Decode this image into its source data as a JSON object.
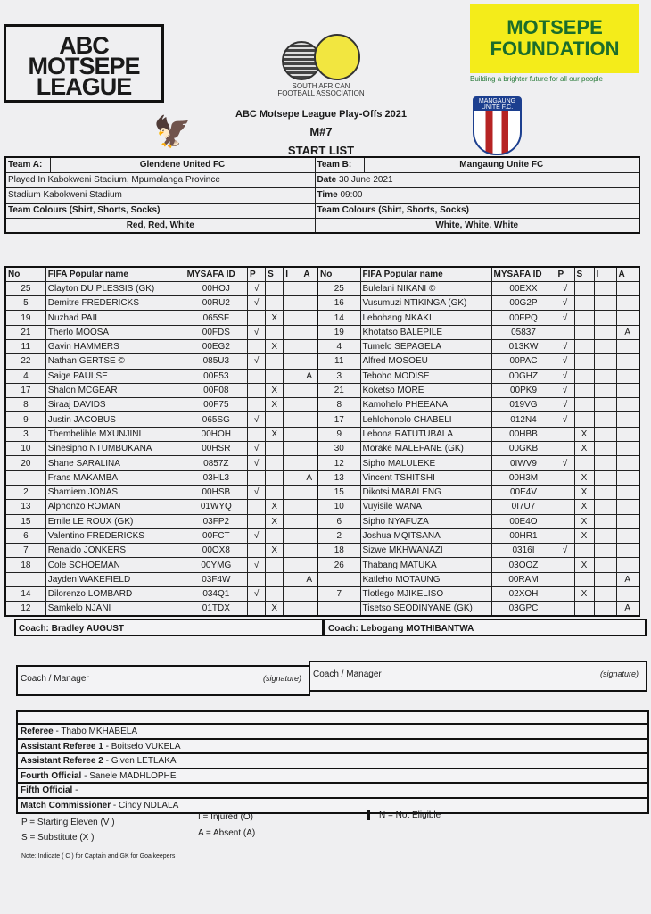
{
  "logos": {
    "abc": "ABC MOTSEPE LEAGUE",
    "safa": "SOUTH AFRICAN FOOTBALL ASSOCIATION",
    "foundation": "MOTSEPE FOUNDATION",
    "foundation_tagline": "Building a brighter future for all our people",
    "crest": "MANGAUNG UNITE F.C."
  },
  "header": {
    "competition": "ABC Motsepe League Play-Offs 2021",
    "match": "M#7",
    "title": "START LIST"
  },
  "info": {
    "team_a_label": "Team A:",
    "team_a": "Glendene United FC",
    "team_b_label": "Team B:",
    "team_b": "Mangaung Unite FC",
    "played_in": "Played In Kabokweni Stadium, Mpumalanga Province",
    "date_label": "Date",
    "date": "30 June 2021",
    "stadium": "Stadium Kabokweni Stadium",
    "time_label": "Time",
    "time": "09:00",
    "colours_label": "Team Colours (Shirt, Shorts, Socks)",
    "team_a_colours": "Red, Red, White",
    "team_b_colours": "White, White, White"
  },
  "columns": [
    "No",
    "FIFA Popular name",
    "MYSAFA ID",
    "P",
    "S",
    "I",
    "A"
  ],
  "team_a_players": [
    [
      "25",
      "Clayton DU PLESSIS (GK)",
      "00HOJ",
      "√",
      "",
      "",
      ""
    ],
    [
      "5",
      "Demitre FREDERICKS",
      "00RU2",
      "√",
      "",
      "",
      ""
    ],
    [
      "19",
      "Nuzhad PAIL",
      "065SF",
      "",
      "X",
      "",
      ""
    ],
    [
      "21",
      "Therlo MOOSA",
      "00FDS",
      "√",
      "",
      "",
      ""
    ],
    [
      "11",
      "Gavin HAMMERS",
      "00EG2",
      "",
      "X",
      "",
      ""
    ],
    [
      "22",
      "Nathan GERTSE ©",
      "085U3",
      "√",
      "",
      "",
      ""
    ],
    [
      "4",
      "Saige PAULSE",
      "00F53",
      "",
      "",
      "",
      "A"
    ],
    [
      "17",
      "Shalon MCGEAR",
      "00F08",
      "",
      "X",
      "",
      ""
    ],
    [
      "8",
      "Siraaj DAVIDS",
      "00F75",
      "",
      "X",
      "",
      ""
    ],
    [
      "9",
      "Justin JACOBUS",
      "065SG",
      "√",
      "",
      "",
      ""
    ],
    [
      "3",
      "Thembelihle MXUNJINI",
      "00HOH",
      "",
      "X",
      "",
      ""
    ],
    [
      "10",
      "Sinesipho NTUMBUKANA",
      "00HSR",
      "√",
      "",
      "",
      ""
    ],
    [
      "20",
      "Shane SARALINA",
      "0857Z",
      "√",
      "",
      "",
      ""
    ],
    [
      "",
      "Frans MAKAMBA",
      "03HL3",
      "",
      "",
      "",
      "A"
    ],
    [
      "2",
      "Shamiem JONAS",
      "00HSB",
      "√",
      "",
      "",
      ""
    ],
    [
      "13",
      "Alphonzo ROMAN",
      "01WYQ",
      "",
      "X",
      "",
      ""
    ],
    [
      "15",
      "Emile LE ROUX (GK)",
      "03FP2",
      "",
      "X",
      "",
      ""
    ],
    [
      "6",
      "Valentino FREDERICKS",
      "00FCT",
      "√",
      "",
      "",
      ""
    ],
    [
      "7",
      "Renaldo JONKERS",
      "00OX8",
      "",
      "X",
      "",
      ""
    ],
    [
      "18",
      "Cole SCHOEMAN",
      "00YMG",
      "√",
      "",
      "",
      ""
    ],
    [
      "",
      "Jayden WAKEFIELD",
      "03F4W",
      "",
      "",
      "",
      "A"
    ],
    [
      "14",
      "Dilorenzo LOMBARD",
      "034Q1",
      "√",
      "",
      "",
      ""
    ],
    [
      "12",
      "Samkelo NJANI",
      "01TDX",
      "",
      "X",
      "",
      ""
    ]
  ],
  "team_b_players": [
    [
      "25",
      "Bulelani NIKANI ©",
      "00EXX",
      "√",
      "",
      "",
      ""
    ],
    [
      "16",
      "Vusumuzi NTIKINGA (GK)",
      "00G2P",
      "√",
      "",
      "",
      ""
    ],
    [
      "14",
      "Lebohang NKAKI",
      "00FPQ",
      "√",
      "",
      "",
      ""
    ],
    [
      "19",
      "Khotatso BALEPILE",
      "05837",
      "",
      "",
      "",
      "A"
    ],
    [
      "4",
      "Tumelo SEPAGELA",
      "013KW",
      "√",
      "",
      "",
      ""
    ],
    [
      "11",
      "Alfred MOSOEU",
      "00PAC",
      "√",
      "",
      "",
      ""
    ],
    [
      "3",
      "Teboho MODISE",
      "00GHZ",
      "√",
      "",
      "",
      ""
    ],
    [
      "21",
      "Koketso MORE",
      "00PK9",
      "√",
      "",
      "",
      ""
    ],
    [
      "8",
      "Kamohelo PHEEANA",
      "019VG",
      "√",
      "",
      "",
      ""
    ],
    [
      "17",
      "Lehlohonolo CHABELI",
      "012N4",
      "√",
      "",
      "",
      ""
    ],
    [
      "9",
      "Lebona RATUTUBALA",
      "00HBB",
      "",
      "X",
      "",
      ""
    ],
    [
      "30",
      "Morake MALEFANE (GK)",
      "00GKB",
      "",
      "X",
      "",
      ""
    ],
    [
      "12",
      "Sipho MALULEKE",
      "0IWV9",
      "√",
      "",
      "",
      ""
    ],
    [
      "13",
      "Vincent TSHITSHI",
      "00H3M",
      "",
      "X",
      "",
      ""
    ],
    [
      "15",
      "Dikotsi MABALENG",
      "00E4V",
      "",
      "X",
      "",
      ""
    ],
    [
      "10",
      "Vuyisile WANA",
      "0I7U7",
      "",
      "X",
      "",
      ""
    ],
    [
      "6",
      "Sipho NYAFUZA",
      "00E4O",
      "",
      "X",
      "",
      ""
    ],
    [
      "2",
      "Joshua MQITSANA",
      "00HR1",
      "",
      "X",
      "",
      ""
    ],
    [
      "18",
      "Sizwe MKHWANAZI",
      "0316I",
      "√",
      "",
      "",
      ""
    ],
    [
      "26",
      "Thabang MATUKA",
      "03OOZ",
      "",
      "X",
      "",
      ""
    ],
    [
      "",
      "Katleho MOTAUNG",
      "00RAM",
      "",
      "",
      "",
      "A"
    ],
    [
      "7",
      "Tlotlego MJIKELISO",
      "02XOH",
      "",
      "X",
      "",
      ""
    ],
    [
      "",
      "Tisetso SEODINYANE (GK)",
      "03GPC",
      "",
      "",
      "",
      "A"
    ]
  ],
  "coaches": {
    "team_a": "Coach: Bradley AUGUST",
    "team_b": "Coach: Lebogang MOTHIBANTWA"
  },
  "signature": {
    "label": "Coach / Manager",
    "hint": "(signature)"
  },
  "officials": [
    {
      "role": "Referee",
      "name": " - Thabo MKHABELA"
    },
    {
      "role": "Assistant Referee 1",
      "name": " - Boitselo VUKELA"
    },
    {
      "role": "Assistant Referee 2",
      "name": " - Given LETLAKA"
    },
    {
      "role": "Fourth Official",
      "name": " - Sanele MADHLOPHE"
    },
    {
      "role": "Fifth Official",
      "name": " -"
    },
    {
      "role": "Match Commissioner",
      "name": " -  Cindy NDLALA"
    }
  ],
  "legend": {
    "p": "P = Starting Eleven (V )",
    "s": "S = Substitute (X )",
    "i": "I = Injured (O)",
    "a": "A = Absent (A)",
    "n": "N = Not Eligible",
    "note": "Note: Indicate ( C ) for Captain and GK for Goalkeepers"
  }
}
